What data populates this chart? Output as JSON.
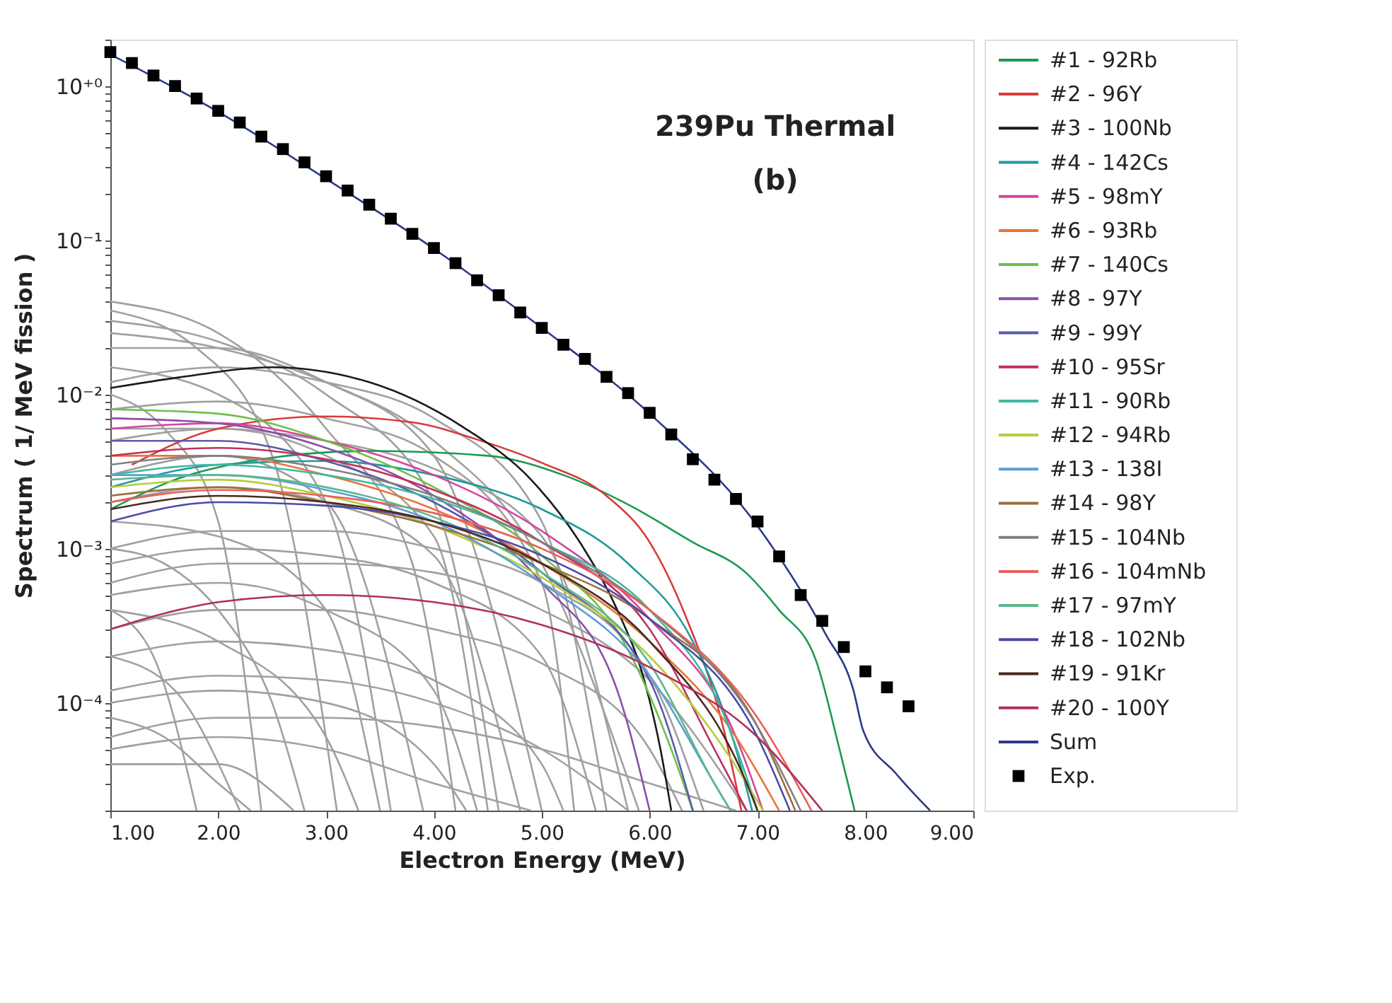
{
  "chart_data": {
    "type": "line",
    "title": "239Pu Thermal",
    "subtitle": "(b)",
    "xlabel": "Electron Energy (MeV)",
    "ylabel": "Spectrum ( 1/ MeV fission )",
    "log": "y",
    "grid": false,
    "legend": "right",
    "xlim": [
      1,
      9
    ],
    "xticks": [
      {
        "value": 1,
        "label": "1.00"
      },
      {
        "value": 2,
        "label": "2.00"
      },
      {
        "value": 3,
        "label": "3.00"
      },
      {
        "value": 4,
        "label": "4.00"
      },
      {
        "value": 5,
        "label": "5.00"
      },
      {
        "value": 6,
        "label": "6.00"
      },
      {
        "value": 7,
        "label": "7.00"
      },
      {
        "value": 8,
        "label": "8.00"
      },
      {
        "value": 9,
        "label": "9.00"
      }
    ],
    "ylim": [
      2e-05,
      2
    ],
    "yticks": [
      {
        "value": 2e-05,
        "label": null
      },
      {
        "value": 3e-05,
        "label": null
      },
      {
        "value": 4e-05,
        "label": null
      },
      {
        "value": 5e-05,
        "label": null
      },
      {
        "value": 6e-05,
        "label": null
      },
      {
        "value": 7e-05,
        "label": null
      },
      {
        "value": 8e-05,
        "label": null
      },
      {
        "value": 9e-05,
        "label": null
      },
      {
        "value": 0.0001,
        "label": "10⁻⁴"
      },
      {
        "value": 0.0002,
        "label": null
      },
      {
        "value": 0.0003,
        "label": null
      },
      {
        "value": 0.0004,
        "label": null
      },
      {
        "value": 0.0005,
        "label": null
      },
      {
        "value": 0.0006,
        "label": null
      },
      {
        "value": 0.0007,
        "label": null
      },
      {
        "value": 0.0008,
        "label": null
      },
      {
        "value": 0.0009,
        "label": null
      },
      {
        "value": 0.001,
        "label": "10⁻³"
      },
      {
        "value": 0.002,
        "label": null
      },
      {
        "value": 0.003,
        "label": null
      },
      {
        "value": 0.004,
        "label": null
      },
      {
        "value": 0.005,
        "label": null
      },
      {
        "value": 0.006,
        "label": null
      },
      {
        "value": 0.007,
        "label": null
      },
      {
        "value": 0.008,
        "label": null
      },
      {
        "value": 0.009,
        "label": null
      },
      {
        "value": 0.01,
        "label": "10⁻²"
      },
      {
        "value": 0.02,
        "label": null
      },
      {
        "value": 0.03,
        "label": null
      },
      {
        "value": 0.04,
        "label": null
      },
      {
        "value": 0.05,
        "label": null
      },
      {
        "value": 0.06,
        "label": null
      },
      {
        "value": 0.07,
        "label": null
      },
      {
        "value": 0.08,
        "label": null
      },
      {
        "value": 0.09,
        "label": null
      },
      {
        "value": 0.1,
        "label": "10⁻¹"
      },
      {
        "value": 0.2,
        "label": null
      },
      {
        "value": 0.3,
        "label": null
      },
      {
        "value": 0.4,
        "label": null
      },
      {
        "value": 0.5,
        "label": null
      },
      {
        "value": 0.6,
        "label": null
      },
      {
        "value": 0.7,
        "label": null
      },
      {
        "value": 0.8,
        "label": null
      },
      {
        "value": 0.9,
        "label": null
      },
      {
        "value": 1,
        "label": "10⁺⁰"
      },
      {
        "value": 2,
        "label": null
      }
    ],
    "series": [
      {
        "color": "#a0a0a0",
        "x": [
          1,
          2,
          3,
          3.8,
          4.2
        ],
        "values": [
          0.04,
          0.025,
          0.006,
          0.0008,
          2e-05
        ]
      },
      {
        "color": "#a0a0a0",
        "x": [
          1,
          2,
          3,
          4,
          4.6
        ],
        "values": [
          0.03,
          0.022,
          0.01,
          0.002,
          2e-05
        ]
      },
      {
        "color": "#a0a0a0",
        "x": [
          1,
          2,
          3,
          4,
          5
        ],
        "values": [
          0.02,
          0.02,
          0.012,
          0.004,
          2e-05
        ]
      },
      {
        "color": "#a0a0a0",
        "x": [
          1,
          1.8,
          2.5,
          3.1
        ],
        "values": [
          0.035,
          0.02,
          0.004,
          2e-05
        ]
      },
      {
        "color": "#a0a0a0",
        "x": [
          1,
          2,
          3,
          4,
          5,
          5.6
        ],
        "values": [
          0.012,
          0.015,
          0.012,
          0.007,
          0.0015,
          2e-05
        ]
      },
      {
        "color": "#a0a0a0",
        "x": [
          1,
          2,
          3,
          4,
          5,
          5.3
        ],
        "values": [
          0.008,
          0.009,
          0.007,
          0.004,
          0.0006,
          2e-05
        ]
      },
      {
        "color": "#a0a0a0",
        "x": [
          1,
          2,
          3,
          3.6
        ],
        "values": [
          0.015,
          0.01,
          0.002,
          2e-05
        ]
      },
      {
        "color": "#a0a0a0",
        "x": [
          1,
          2,
          3,
          4,
          4.5
        ],
        "values": [
          0.006,
          0.006,
          0.004,
          0.0012,
          2e-05
        ]
      },
      {
        "color": "#a0a0a0",
        "x": [
          1,
          2,
          3,
          4,
          5,
          5.8
        ],
        "values": [
          0.005,
          0.006,
          0.005,
          0.0033,
          0.0012,
          2e-05
        ]
      },
      {
        "color": "#a0a0a0",
        "x": [
          1,
          1.5,
          2,
          2.4
        ],
        "values": [
          0.01,
          0.006,
          0.0015,
          2e-05
        ]
      },
      {
        "color": "#a0a0a0",
        "x": [
          1,
          2,
          3,
          4,
          4.8
        ],
        "values": [
          0.002,
          0.0025,
          0.002,
          0.0009,
          2e-05
        ]
      },
      {
        "color": "#a0a0a0",
        "x": [
          1,
          2,
          3,
          4,
          5,
          6,
          6.5
        ],
        "values": [
          0.001,
          0.0013,
          0.0013,
          0.001,
          0.0006,
          0.00015,
          2e-05
        ]
      },
      {
        "color": "#a0a0a0",
        "x": [
          1,
          2,
          3,
          3.5
        ],
        "values": [
          0.0015,
          0.0012,
          0.0004,
          2e-05
        ]
      },
      {
        "color": "#a0a0a0",
        "x": [
          1,
          2,
          3,
          4,
          5,
          5.5
        ],
        "values": [
          0.0008,
          0.001,
          0.0009,
          0.0006,
          0.0002,
          2e-05
        ]
      },
      {
        "color": "#a0a0a0",
        "x": [
          1,
          1.5,
          2,
          2.5,
          2.8
        ],
        "values": [
          0.001,
          0.0008,
          0.0004,
          0.0001,
          2e-05
        ]
      },
      {
        "color": "#a0a0a0",
        "x": [
          1,
          2,
          3,
          4,
          4.4
        ],
        "values": [
          0.0005,
          0.0006,
          0.0004,
          0.00012,
          2e-05
        ]
      },
      {
        "color": "#a0a0a0",
        "x": [
          1,
          2,
          3,
          4,
          5,
          6,
          6.3
        ],
        "values": [
          0.0003,
          0.0004,
          0.0004,
          0.0003,
          0.00018,
          5e-05,
          2e-05
        ]
      },
      {
        "color": "#a0a0a0",
        "x": [
          1,
          2,
          3,
          3.3
        ],
        "values": [
          0.0004,
          0.00025,
          6e-05,
          2e-05
        ]
      },
      {
        "color": "#a0a0a0",
        "x": [
          1,
          2,
          3,
          4,
          5,
          5.2
        ],
        "values": [
          0.0002,
          0.00025,
          0.00022,
          0.00014,
          4e-05,
          2e-05
        ]
      },
      {
        "color": "#a0a0a0",
        "x": [
          1,
          1.6,
          2.2
        ],
        "values": [
          0.0002,
          0.00012,
          2e-05
        ]
      },
      {
        "color": "#a0a0a0",
        "x": [
          1,
          2,
          3,
          4,
          4.3
        ],
        "values": [
          0.0001,
          0.00012,
          0.0001,
          4e-05,
          2e-05
        ]
      },
      {
        "color": "#a0a0a0",
        "x": [
          1,
          2,
          3,
          4,
          5,
          5.8
        ],
        "values": [
          0.00012,
          0.00015,
          0.00014,
          0.0001,
          5e-05,
          2e-05
        ]
      },
      {
        "color": "#a0a0a0",
        "x": [
          1,
          1.5,
          2,
          2.3
        ],
        "values": [
          8e-05,
          6e-05,
          3e-05,
          2e-05
        ]
      },
      {
        "color": "#a0a0a0",
        "x": [
          1,
          2,
          3,
          4,
          5,
          6,
          6.8
        ],
        "values": [
          6e-05,
          8e-05,
          8e-05,
          7e-05,
          5e-05,
          3e-05,
          2e-05
        ]
      },
      {
        "color": "#a0a0a0",
        "x": [
          1,
          2,
          3,
          4,
          4.9
        ],
        "values": [
          5e-05,
          6e-05,
          5e-05,
          3e-05,
          2e-05
        ]
      },
      {
        "color": "#a0a0a0",
        "x": [
          1,
          2,
          3,
          3.9
        ],
        "values": [
          0.003,
          0.004,
          0.002,
          2e-05
        ]
      },
      {
        "color": "#a0a0a0",
        "x": [
          1,
          2,
          3,
          4,
          5,
          6,
          6.9
        ],
        "values": [
          0.0006,
          0.0008,
          0.0008,
          0.0007,
          0.0004,
          0.00014,
          2e-05
        ]
      },
      {
        "color": "#a0a0a0",
        "x": [
          1,
          2,
          3,
          4,
          5,
          5.9
        ],
        "values": [
          0.025,
          0.02,
          0.012,
          0.005,
          0.0008,
          2e-05
        ]
      },
      {
        "color": "#a0a0a0",
        "x": [
          1,
          1.4,
          1.8
        ],
        "values": [
          0.0004,
          0.0002,
          2e-05
        ]
      },
      {
        "color": "#a0a0a0",
        "x": [
          1,
          2,
          2.7
        ],
        "values": [
          4e-05,
          4e-05,
          2e-05
        ]
      },
      {
        "name": "#1 - 92Rb",
        "color": "#1a9a50",
        "x": [
          1,
          1.6,
          2.4,
          3.4,
          4.5,
          5.2,
          5.82,
          6.4,
          6.89,
          7.2,
          7.54,
          7.76,
          7.9
        ],
        "values": [
          0.0018,
          0.0028,
          0.0038,
          0.0043,
          0.004,
          0.003,
          0.0019,
          0.0011,
          0.0007,
          0.0004,
          0.00019,
          5e-05,
          2e-05
        ]
      },
      {
        "name": "#2 - 96Y",
        "color": "#d83a3a",
        "x": [
          1.2,
          2,
          3,
          3.8,
          4.4,
          5,
          5.6,
          6,
          6.33,
          6.68,
          6.85
        ],
        "values": [
          0.0035,
          0.006,
          0.0072,
          0.0066,
          0.0051,
          0.0036,
          0.0022,
          0.0011,
          0.00037,
          7e-05,
          2e-05
        ]
      },
      {
        "name": "#3 - 100Nb",
        "color": "#1a1a1a",
        "x": [
          1,
          1.67,
          2.5,
          3.4,
          4.26,
          4.9,
          5.39,
          5.7,
          5.95,
          6.1,
          6.2
        ],
        "values": [
          0.011,
          0.013,
          0.015,
          0.012,
          0.0062,
          0.0028,
          0.001,
          0.0004,
          0.00014,
          5e-05,
          2e-05
        ]
      },
      {
        "name": "#4 - 142Cs",
        "color": "#1f9a9a",
        "x": [
          1,
          2,
          3,
          4,
          5,
          5.8,
          6.4,
          6.8,
          6.95
        ],
        "values": [
          0.0025,
          0.0035,
          0.0037,
          0.003,
          0.0018,
          0.0008,
          0.00025,
          5e-05,
          2e-05
        ]
      },
      {
        "name": "#5 - 98mY",
        "color": "#d6449a",
        "x": [
          1,
          2,
          3,
          4,
          5,
          6,
          6.8,
          7.05
        ],
        "values": [
          0.006,
          0.0065,
          0.005,
          0.003,
          0.0013,
          0.00035,
          6e-05,
          2e-05
        ]
      },
      {
        "name": "#6 - 93Rb",
        "color": "#e8743b",
        "x": [
          1,
          2,
          3,
          4,
          5,
          6,
          6.8,
          7.2
        ],
        "values": [
          0.004,
          0.004,
          0.003,
          0.0018,
          0.0008,
          0.00025,
          6e-05,
          2e-05
        ]
      },
      {
        "name": "#7 - 140Cs",
        "color": "#6cc04a",
        "x": [
          1,
          2,
          3,
          4,
          5,
          5.8,
          6.2,
          6.4
        ],
        "values": [
          0.008,
          0.0075,
          0.005,
          0.0025,
          0.0009,
          0.00022,
          5e-05,
          2e-05
        ]
      },
      {
        "name": "#8 - 97Y",
        "color": "#8b4fa8",
        "x": [
          1,
          2,
          3,
          4,
          5,
          5.7,
          6
        ],
        "values": [
          0.007,
          0.0065,
          0.0045,
          0.0022,
          0.0006,
          0.00012,
          2e-05
        ]
      },
      {
        "name": "#9 - 99Y",
        "color": "#5a5aa8",
        "x": [
          1,
          2,
          3,
          4,
          5,
          6,
          6.4
        ],
        "values": [
          0.005,
          0.005,
          0.0037,
          0.002,
          0.0007,
          0.00014,
          2e-05
        ]
      },
      {
        "name": "#10 - 95Sr",
        "color": "#c03060",
        "x": [
          1,
          2,
          3,
          4,
          5,
          6,
          6.6,
          6.9
        ],
        "values": [
          0.004,
          0.0045,
          0.0038,
          0.0024,
          0.0011,
          0.0003,
          5e-05,
          2e-05
        ]
      },
      {
        "name": "#11 - 90Rb",
        "color": "#3fb8a0",
        "x": [
          1,
          2,
          3,
          4,
          5,
          6,
          6.7,
          7
        ],
        "values": [
          0.003,
          0.0035,
          0.003,
          0.0021,
          0.0011,
          0.0004,
          8e-05,
          2e-05
        ]
      },
      {
        "name": "#12 - 94Rb",
        "color": "#b5cc3c",
        "x": [
          1,
          2,
          3,
          4,
          5,
          6,
          6.9,
          7.05
        ],
        "values": [
          0.0025,
          0.0028,
          0.0022,
          0.0014,
          0.00065,
          0.0002,
          3e-05,
          2e-05
        ]
      },
      {
        "name": "#13 - 138I",
        "color": "#5a9fd4",
        "x": [
          1,
          2,
          3,
          4,
          5,
          6,
          6.6,
          6.75
        ],
        "values": [
          0.003,
          0.003,
          0.0024,
          0.0015,
          0.0006,
          0.00015,
          3e-05,
          2e-05
        ]
      },
      {
        "name": "#14 - 98Y",
        "color": "#9a7040",
        "x": [
          1,
          2,
          3,
          4,
          5,
          6,
          7,
          7.35
        ],
        "values": [
          0.0022,
          0.0025,
          0.002,
          0.0014,
          0.0008,
          0.00035,
          7e-05,
          2e-05
        ]
      },
      {
        "name": "#15 - 104Nb",
        "color": "#808080",
        "x": [
          1,
          2,
          3,
          4,
          5,
          6,
          7,
          7.4
        ],
        "values": [
          0.0035,
          0.004,
          0.0033,
          0.0022,
          0.0011,
          0.0004,
          7e-05,
          2e-05
        ]
      },
      {
        "name": "#16 - 104mNb",
        "color": "#e8605a",
        "x": [
          1,
          2,
          3,
          4,
          5,
          6,
          7,
          7.5
        ],
        "values": [
          0.002,
          0.0024,
          0.0022,
          0.0017,
          0.001,
          0.0004,
          8e-05,
          2e-05
        ]
      },
      {
        "name": "#17 - 97mY",
        "color": "#5ab88a",
        "x": [
          1,
          2,
          3,
          4,
          5,
          6,
          6.6,
          6.75
        ],
        "values": [
          0.0028,
          0.003,
          0.0025,
          0.0016,
          0.0007,
          0.00018,
          3e-05,
          2e-05
        ]
      },
      {
        "name": "#18 - 102Nb",
        "color": "#4a4aa8",
        "x": [
          1,
          2,
          3,
          4,
          5,
          6,
          7,
          7.3
        ],
        "values": [
          0.0015,
          0.002,
          0.0019,
          0.0015,
          0.0009,
          0.00035,
          6e-05,
          2e-05
        ]
      },
      {
        "name": "#19 - 91Kr",
        "color": "#4a2a20",
        "x": [
          1,
          2,
          3,
          4,
          5,
          6,
          6.9,
          7
        ],
        "values": [
          0.0018,
          0.0022,
          0.002,
          0.0015,
          0.0008,
          0.00025,
          3e-05,
          2e-05
        ]
      },
      {
        "name": "#20 - 100Y",
        "color": "#b0305a",
        "x": [
          1,
          1.5,
          2,
          3,
          4,
          5,
          6,
          7,
          7.6
        ],
        "values": [
          0.0003,
          0.00038,
          0.00045,
          0.0005,
          0.00045,
          0.00032,
          0.00017,
          6e-05,
          2e-05
        ]
      },
      {
        "name": "Sum",
        "color": "#2a3a8a",
        "x": [
          1,
          2,
          3,
          4,
          5,
          6,
          7,
          7.63,
          7.89,
          7.98,
          8.28,
          8.6
        ],
        "values": [
          1.6,
          0.68,
          0.25,
          0.088,
          0.027,
          0.0075,
          0.0014,
          0.00028,
          0.00012,
          6.6e-05,
          3.5e-05,
          2e-05
        ]
      },
      {
        "type": "scatter",
        "name": "Exp.",
        "color": "#000000",
        "marker": "square",
        "x": [
          1,
          1.2,
          1.4,
          1.6,
          1.8,
          2,
          2.2,
          2.4,
          2.6,
          2.8,
          3,
          3.2,
          3.4,
          3.6,
          3.8,
          4,
          4.2,
          4.4,
          4.6,
          4.8,
          5,
          5.2,
          5.4,
          5.6,
          5.8,
          6,
          6.2,
          6.4,
          6.6,
          6.8,
          7,
          7.2,
          7.4,
          7.6,
          7.8,
          8,
          8.2,
          8.4
        ],
        "values": [
          1.66,
          1.41,
          1.17,
          1.0,
          0.83,
          0.69,
          0.58,
          0.47,
          0.39,
          0.32,
          0.26,
          0.21,
          0.17,
          0.138,
          0.11,
          0.089,
          0.071,
          0.055,
          0.044,
          0.034,
          0.027,
          0.021,
          0.017,
          0.013,
          0.0102,
          0.0076,
          0.0055,
          0.0038,
          0.0028,
          0.0021,
          0.0015,
          0.00089,
          0.0005,
          0.00034,
          0.00023,
          0.00016,
          0.000126,
          9.5e-05
        ]
      }
    ]
  }
}
